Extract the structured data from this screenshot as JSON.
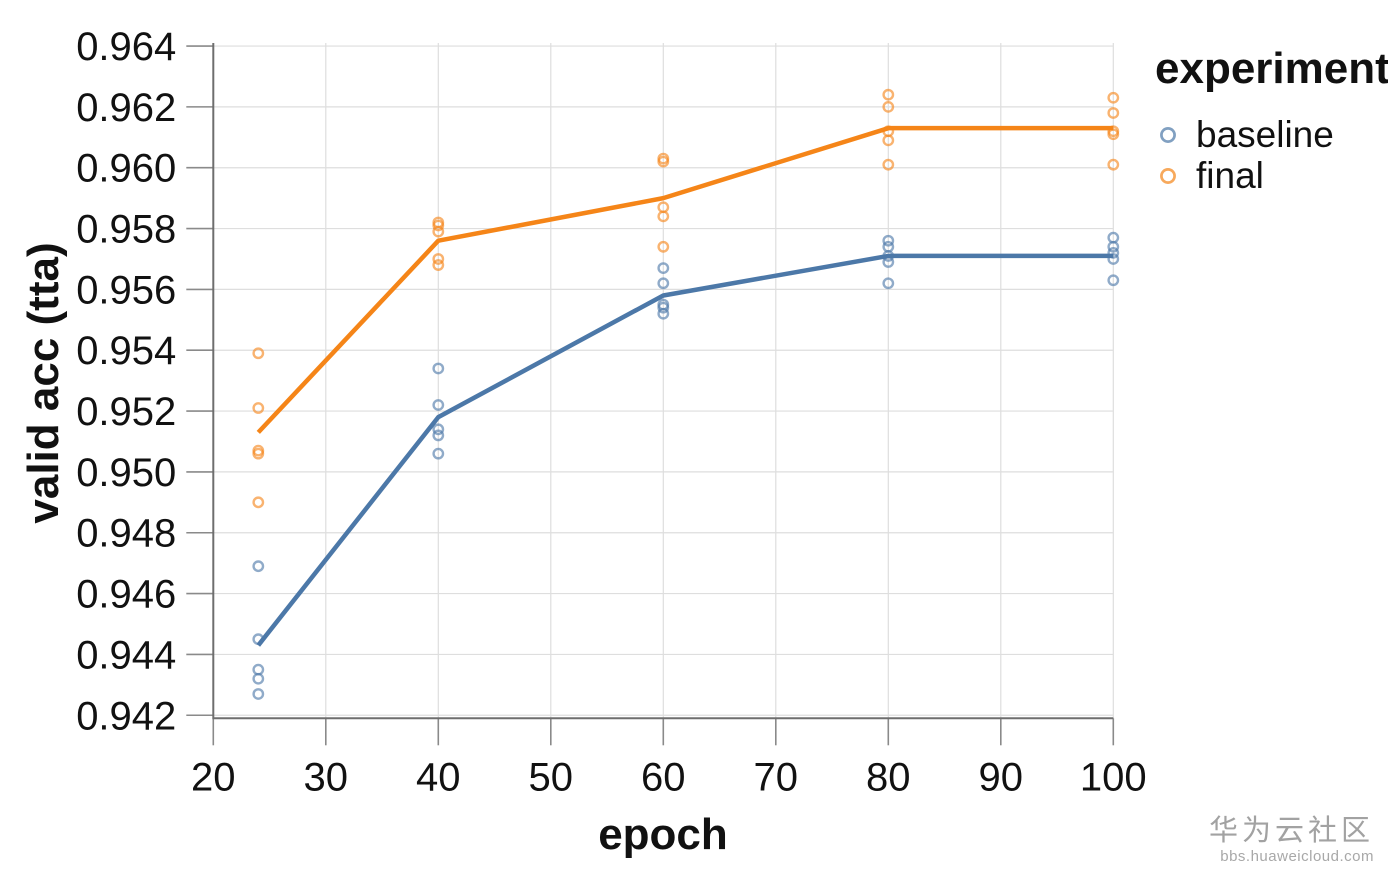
{
  "chart_data": {
    "type": "scatter",
    "title": "",
    "xlabel": "epoch",
    "ylabel": "valid acc (tta)",
    "legend_title": "experiment",
    "legend_position": "top-right",
    "grid": true,
    "xlim": [
      20,
      100
    ],
    "ylim": [
      0.9419,
      0.9641
    ],
    "x_ticks": [
      20,
      30,
      40,
      50,
      60,
      70,
      80,
      90,
      100
    ],
    "x_tick_labels": [
      "20",
      "30",
      "40",
      "50",
      "60",
      "70",
      "80",
      "90",
      "100"
    ],
    "y_ticks": [
      0.942,
      0.944,
      0.946,
      0.948,
      0.95,
      0.952,
      0.954,
      0.956,
      0.958,
      0.96,
      0.962,
      0.964
    ],
    "y_tick_labels": [
      "0.942",
      "0.944",
      "0.946",
      "0.948",
      "0.950",
      "0.952",
      "0.954",
      "0.956",
      "0.958",
      "0.960",
      "0.962",
      "0.964"
    ],
    "series": [
      {
        "name": "baseline",
        "color": "#4c78a8",
        "marker": "open-circle",
        "points": [
          [
            24,
            0.9469
          ],
          [
            24,
            0.9445
          ],
          [
            24,
            0.9435
          ],
          [
            24,
            0.9432
          ],
          [
            24,
            0.9427
          ],
          [
            40,
            0.9534
          ],
          [
            40,
            0.9522
          ],
          [
            40,
            0.9514
          ],
          [
            40,
            0.9512
          ],
          [
            40,
            0.9506
          ],
          [
            60,
            0.9567
          ],
          [
            60,
            0.9562
          ],
          [
            60,
            0.9555
          ],
          [
            60,
            0.9554
          ],
          [
            60,
            0.9552
          ],
          [
            80,
            0.9576
          ],
          [
            80,
            0.9574
          ],
          [
            80,
            0.9571
          ],
          [
            80,
            0.9569
          ],
          [
            80,
            0.9562
          ],
          [
            100,
            0.9577
          ],
          [
            100,
            0.9574
          ],
          [
            100,
            0.9572
          ],
          [
            100,
            0.957
          ],
          [
            100,
            0.9563
          ]
        ],
        "trend_line": [
          [
            24,
            0.9443
          ],
          [
            40,
            0.9518
          ],
          [
            60,
            0.9558
          ],
          [
            80,
            0.9571
          ],
          [
            100,
            0.9571
          ]
        ]
      },
      {
        "name": "final",
        "color": "#f58518",
        "marker": "open-circle",
        "points": [
          [
            24,
            0.9539
          ],
          [
            24,
            0.9521
          ],
          [
            24,
            0.9507
          ],
          [
            24,
            0.9506
          ],
          [
            24,
            0.949
          ],
          [
            40,
            0.9582
          ],
          [
            40,
            0.9581
          ],
          [
            40,
            0.9579
          ],
          [
            40,
            0.957
          ],
          [
            40,
            0.9568
          ],
          [
            60,
            0.9603
          ],
          [
            60,
            0.9602
          ],
          [
            60,
            0.9587
          ],
          [
            60,
            0.9584
          ],
          [
            60,
            0.9574
          ],
          [
            80,
            0.9624
          ],
          [
            80,
            0.962
          ],
          [
            80,
            0.9612
          ],
          [
            80,
            0.9609
          ],
          [
            80,
            0.9601
          ],
          [
            100,
            0.9623
          ],
          [
            100,
            0.9618
          ],
          [
            100,
            0.9612
          ],
          [
            100,
            0.9611
          ],
          [
            100,
            0.9601
          ]
        ],
        "trend_line": [
          [
            24,
            0.9513
          ],
          [
            40,
            0.9576
          ],
          [
            60,
            0.959
          ],
          [
            80,
            0.9613
          ],
          [
            100,
            0.9613
          ]
        ]
      }
    ]
  },
  "legend": {
    "title": "experiment",
    "items": [
      {
        "label": "baseline",
        "color": "#4c78a8"
      },
      {
        "label": "final",
        "color": "#f58518"
      }
    ]
  },
  "watermark": {
    "title": "华为云社区",
    "subtitle": "bbs.huaweicloud.com"
  }
}
